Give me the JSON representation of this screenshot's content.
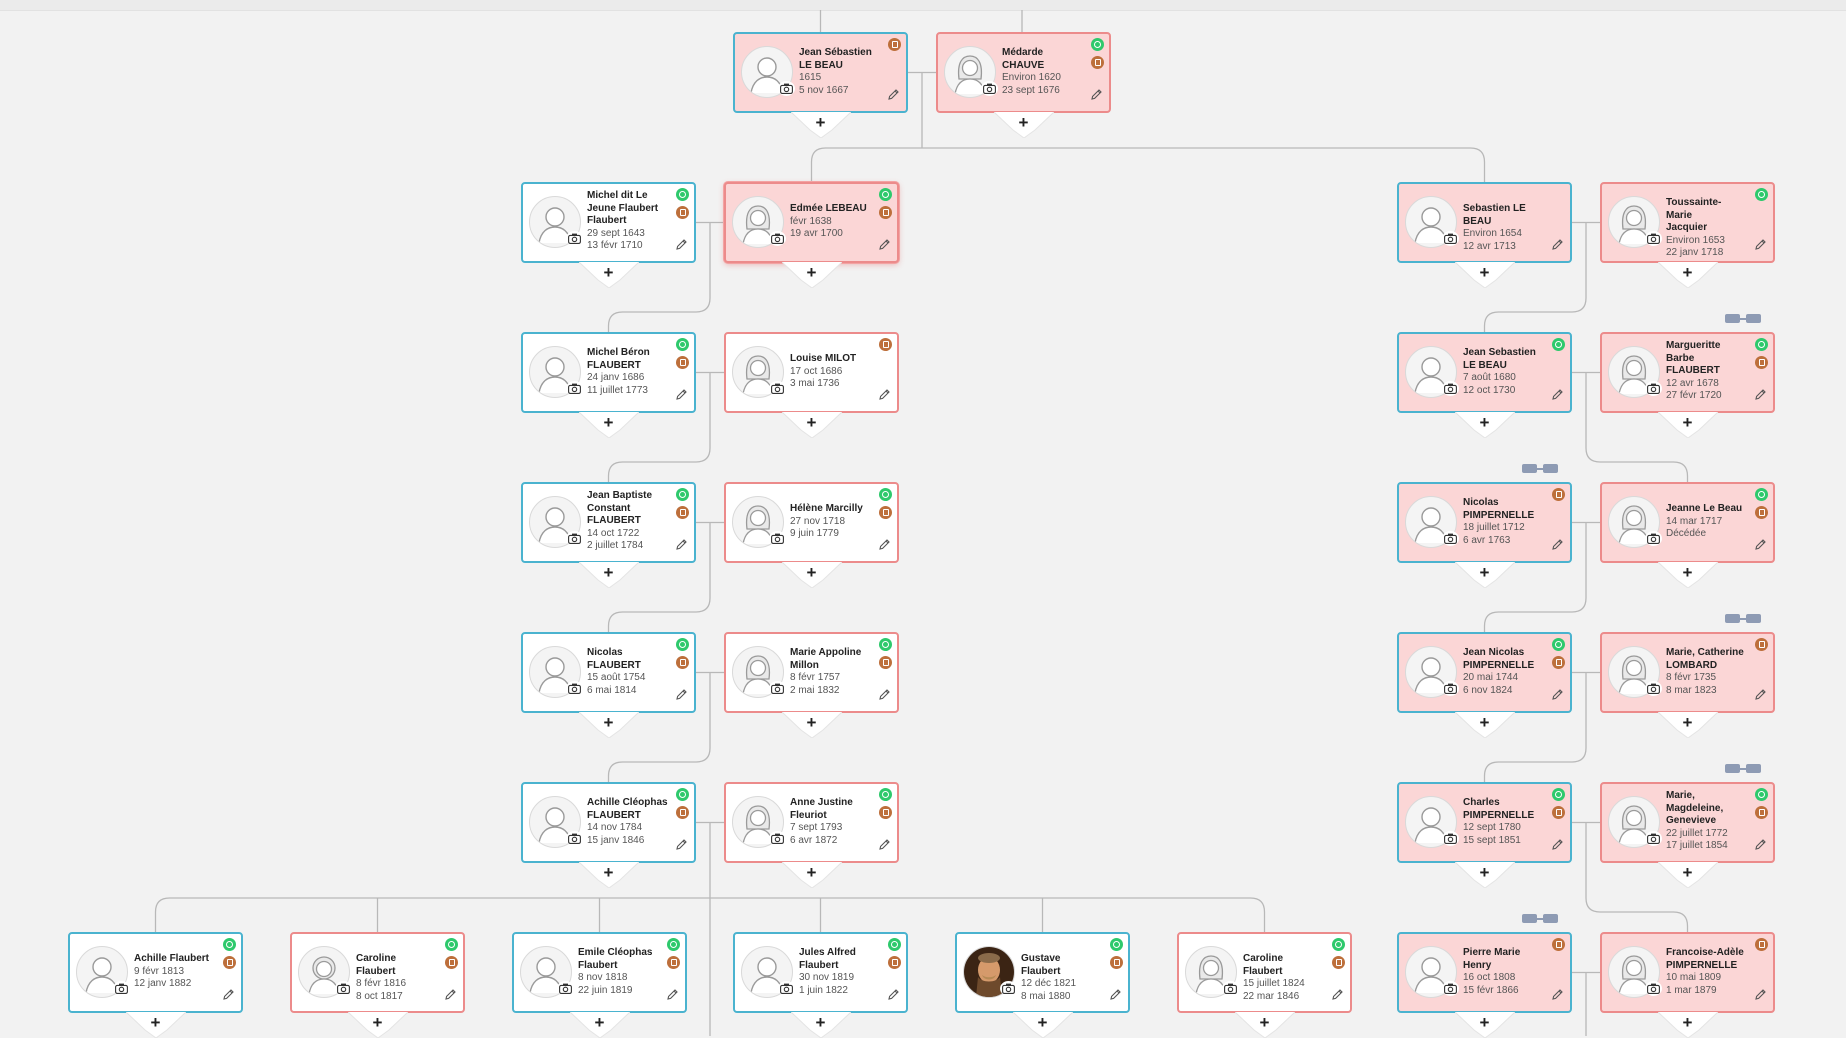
{
  "colors": {
    "male_border": "#4ab3cf",
    "female_border": "#ec8b8b",
    "highlight_bg": "#fbd6d6",
    "green_badge": "#2ec96c",
    "brown_badge": "#bd6f3b",
    "line": "#b8b8b8"
  },
  "icons": {
    "add": "plus-icon",
    "edit": "pencil-icon",
    "photo": "camera-icon",
    "hint": "green-hint-icon",
    "source": "brown-record-icon",
    "link": "linked-people-icon"
  },
  "add_label": "+",
  "people": {
    "jslb1": {
      "name": [
        "Jean Sébastien",
        "LE BEAU"
      ],
      "lines": [
        "1615",
        "5 nov 1667"
      ]
    },
    "chauve": {
      "name": [
        "Médarde",
        "CHAUVE"
      ],
      "lines": [
        "Environ 1620",
        "23 sept 1676"
      ]
    },
    "michel_jeune": {
      "name": [
        "Michel dit Le",
        "Jeune Flaubert",
        "Flaubert"
      ],
      "lines": [
        "29 sept 1643",
        "13 févr 1710"
      ]
    },
    "edmee": {
      "name": [
        "Edmée LEBEAU"
      ],
      "lines": [
        "févr 1638",
        "19 avr 1700"
      ]
    },
    "seb": {
      "name": [
        "Sebastien LE BEAU"
      ],
      "lines": [
        "Environ 1654",
        "12 avr 1713"
      ]
    },
    "toussainte": {
      "name": [
        "Toussainte-Marie",
        "Jacquier"
      ],
      "lines": [
        "Environ 1653",
        "22 janv 1718"
      ]
    },
    "michel_beron": {
      "name": [
        "Michel Béron",
        "FLAUBERT"
      ],
      "lines": [
        "24 janv 1686",
        "11 juillet 1773"
      ]
    },
    "louise": {
      "name": [
        "Louise MILOT"
      ],
      "lines": [
        "17 oct 1686",
        "3 mai 1736"
      ]
    },
    "jslb2": {
      "name": [
        "Jean Sebastien",
        "LE BEAU"
      ],
      "lines": [
        "7 août 1680",
        "12 oct 1730"
      ]
    },
    "marguerite": {
      "name": [
        "Margueritte",
        "Barbe",
        "FLAUBERT"
      ],
      "lines": [
        "12 avr 1678",
        "27 févr 1720"
      ]
    },
    "jbc": {
      "name": [
        "Jean Baptiste",
        "Constant",
        "FLAUBERT"
      ],
      "lines": [
        "14 oct 1722",
        "2 juillet 1784"
      ]
    },
    "helene": {
      "name": [
        "Hélène Marcilly"
      ],
      "lines": [
        "27 nov 1718",
        "9 juin 1779"
      ]
    },
    "nicolas_p": {
      "name": [
        "Nicolas",
        "PIMPERNELLE"
      ],
      "lines": [
        "18 juillet 1712",
        "6 avr 1763"
      ]
    },
    "jeanne": {
      "name": [
        "Jeanne Le Beau"
      ],
      "lines": [
        "14 mar 1717",
        "Décédée"
      ]
    },
    "nicolas_f": {
      "name": [
        "Nicolas",
        "FLAUBERT"
      ],
      "lines": [
        "15 août 1754",
        "6 mai 1814"
      ]
    },
    "marie_app": {
      "name": [
        "Marie Appoline",
        "Millon"
      ],
      "lines": [
        "8 févr 1757",
        "2 mai 1832"
      ]
    },
    "jean_nic": {
      "name": [
        "Jean Nicolas",
        "PIMPERNELLE"
      ],
      "lines": [
        "20 mai 1744",
        "6 nov 1824"
      ]
    },
    "marie_cath": {
      "name": [
        "Marie, Catherine",
        "LOMBARD"
      ],
      "lines": [
        "8 févr 1735",
        "8 mar 1823"
      ]
    },
    "achille_c": {
      "name": [
        "Achille Cléophas",
        "FLAUBERT"
      ],
      "lines": [
        "14 nov 1784",
        "15 janv 1846"
      ]
    },
    "anne": {
      "name": [
        "Anne Justine",
        "Fleuriot"
      ],
      "lines": [
        "7 sept 1793",
        "6 avr 1872"
      ]
    },
    "charles": {
      "name": [
        "Charles",
        "PIMPERNELLE"
      ],
      "lines": [
        "12 sept 1780",
        "15 sept 1851"
      ]
    },
    "marie_mag": {
      "name": [
        "Marie,",
        "Magdeleine,",
        "Genevieve"
      ],
      "lines": [
        "22 juillet 1772",
        "17 juillet 1854"
      ]
    },
    "achille": {
      "name": [
        "Achille Flaubert"
      ],
      "lines": [
        "9 févr 1813",
        "12 janv 1882"
      ]
    },
    "caroline1": {
      "name": [
        "Caroline Flaubert"
      ],
      "lines": [
        "8 févr 1816",
        "8 oct 1817"
      ]
    },
    "emile": {
      "name": [
        "Emile Cléophas",
        "Flaubert"
      ],
      "lines": [
        "8 nov 1818",
        "22 juin 1819"
      ]
    },
    "jules": {
      "name": [
        "Jules Alfred",
        "Flaubert"
      ],
      "lines": [
        "30 nov 1819",
        "1 juin 1822"
      ]
    },
    "gustave": {
      "name": [
        "Gustave Flaubert"
      ],
      "lines": [
        "12 déc 1821",
        "8 mai 1880"
      ]
    },
    "caroline2": {
      "name": [
        "Caroline Flaubert"
      ],
      "lines": [
        "15 juillet 1824",
        "22 mar 1846"
      ]
    },
    "pierre": {
      "name": [
        "Pierre Marie",
        "Henry"
      ],
      "lines": [
        "16 oct 1808",
        "15 févr 1866"
      ]
    },
    "francoise": {
      "name": [
        "Francoise-Adèle",
        "PIMPERNELLE"
      ],
      "lines": [
        "10 mai 1809",
        "1 mar 1879"
      ]
    }
  }
}
